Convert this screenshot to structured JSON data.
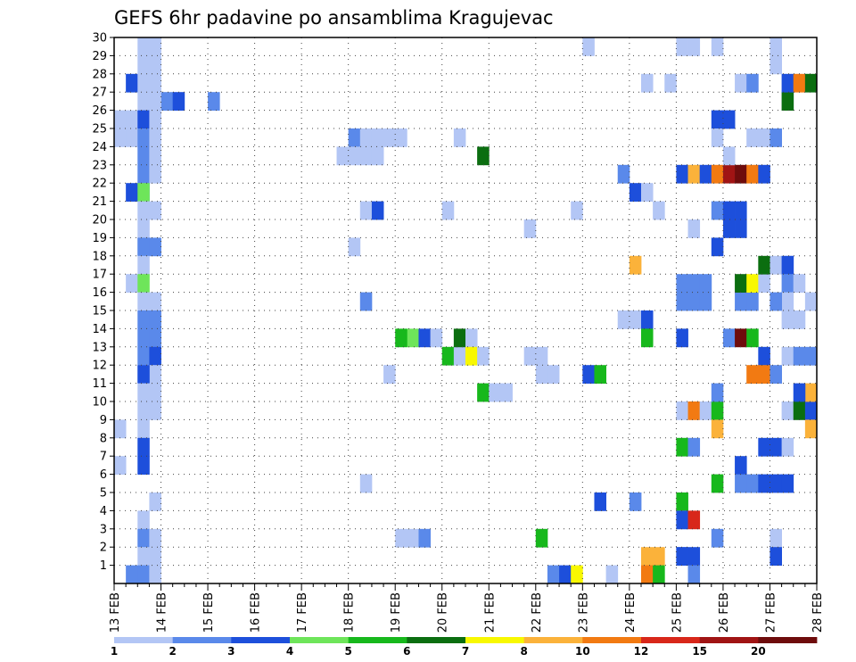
{
  "chart_data": {
    "type": "heatmap",
    "title": "GEFS 6hr padavine po ansamblima Kragujevac",
    "xlabel": "",
    "ylabel": "",
    "x_ticks": [
      "13 FEB",
      "14 FEB",
      "15 FEB",
      "16 FEB",
      "17 FEB",
      "18 FEB",
      "19 FEB",
      "20 FEB",
      "21 FEB",
      "22 FEB",
      "23 FEB",
      "24 FEB",
      "25 FEB",
      "26 FEB",
      "27 FEB",
      "28 FEB"
    ],
    "y_ticks": [
      "1",
      "2",
      "3",
      "4",
      "5",
      "6",
      "7",
      "8",
      "9",
      "10",
      "11",
      "12",
      "13",
      "14",
      "15",
      "16",
      "17",
      "18",
      "19",
      "20",
      "21",
      "22",
      "23",
      "24",
      "25",
      "26",
      "27",
      "28",
      "29",
      "30"
    ],
    "xlim": [
      "13 FEB 00Z",
      "28 FEB 00Z"
    ],
    "ylim": [
      0,
      30
    ],
    "x_step_hours": 6,
    "grid": true,
    "legend": {
      "position": "bottom",
      "thresholds": [
        "1",
        "2",
        "3",
        "4",
        "5",
        "6",
        "7",
        "8",
        "10",
        "12",
        "15",
        "20"
      ],
      "colors": [
        "#b3c6f5",
        "#5a89ea",
        "#1d4fdb",
        "#6ee55a",
        "#17b81c",
        "#0b6e10",
        "#f8f801",
        "#fbb23a",
        "#f27a12",
        "#d8271a",
        "#a01414",
        "#6e0c0c"
      ]
    },
    "cells": [
      [
        1,
        2,
        30
      ],
      [
        2,
        3,
        30
      ],
      [
        3,
        3,
        30
      ],
      [
        2,
        1,
        27
      ],
      [
        2,
        2,
        27
      ],
      [
        1,
        4,
        26
      ],
      [
        2,
        5,
        26
      ],
      [
        1,
        8,
        26
      ],
      [
        2,
        2,
        25
      ],
      [
        1,
        2,
        30
      ],
      [
        0,
        2,
        29
      ],
      [
        0,
        3,
        29
      ],
      [
        0,
        2,
        28
      ],
      [
        0,
        3,
        28
      ],
      [
        0,
        2,
        27
      ],
      [
        0,
        3,
        27
      ],
      [
        0,
        2,
        26
      ],
      [
        0,
        3,
        26
      ],
      [
        0,
        0,
        25
      ],
      [
        0,
        1,
        25
      ],
      [
        2,
        2,
        25
      ],
      [
        0,
        3,
        25
      ],
      [
        0,
        0,
        24
      ],
      [
        0,
        1,
        24
      ],
      [
        1,
        2,
        24
      ],
      [
        0,
        3,
        24
      ],
      [
        1,
        2,
        23
      ],
      [
        0,
        3,
        23
      ],
      [
        1,
        2,
        22
      ],
      [
        0,
        3,
        22
      ],
      [
        1,
        2,
        21
      ],
      [
        2,
        1,
        21
      ],
      [
        3,
        2,
        21
      ],
      [
        0,
        2,
        20
      ],
      [
        0,
        3,
        20
      ],
      [
        0,
        2,
        19
      ],
      [
        0,
        2,
        18
      ],
      [
        1,
        2,
        18
      ],
      [
        1,
        3,
        18
      ],
      [
        0,
        2,
        17
      ],
      [
        0,
        1,
        16
      ],
      [
        3,
        2,
        16
      ],
      [
        0,
        2,
        15
      ],
      [
        0,
        3,
        15
      ],
      [
        1,
        2,
        14
      ],
      [
        1,
        3,
        14
      ],
      [
        1,
        2,
        13
      ],
      [
        1,
        3,
        13
      ],
      [
        1,
        2,
        12
      ],
      [
        2,
        3,
        12
      ],
      [
        0,
        2,
        11
      ],
      [
        0,
        3,
        11
      ],
      [
        2,
        2,
        11
      ],
      [
        0,
        3,
        10
      ],
      [
        0,
        2,
        10
      ],
      [
        0,
        2,
        9
      ],
      [
        0,
        3,
        9
      ],
      [
        0,
        0,
        8
      ],
      [
        0,
        2,
        8
      ],
      [
        2,
        2,
        7
      ],
      [
        0,
        0,
        6
      ],
      [
        2,
        2,
        6
      ],
      [
        0,
        3,
        4
      ],
      [
        0,
        2,
        3
      ],
      [
        1,
        2,
        2
      ],
      [
        0,
        3,
        2
      ],
      [
        0,
        2,
        1
      ],
      [
        0,
        3,
        1
      ],
      [
        1,
        1,
        0
      ],
      [
        1,
        2,
        0
      ],
      [
        0,
        3,
        0
      ],
      [
        0,
        40,
        29
      ],
      [
        1,
        20,
        24
      ],
      [
        0,
        21,
        24
      ],
      [
        0,
        22,
        24
      ],
      [
        0,
        19,
        23
      ],
      [
        0,
        20,
        23
      ],
      [
        0,
        21,
        23
      ],
      [
        0,
        22,
        23
      ],
      [
        0,
        20,
        18
      ],
      [
        0,
        21,
        20
      ],
      [
        2,
        22,
        20
      ],
      [
        1,
        21,
        15
      ],
      [
        0,
        21,
        5
      ],
      [
        0,
        23,
        24
      ],
      [
        0,
        24,
        24
      ],
      [
        0,
        23,
        11
      ],
      [
        0,
        24,
        2
      ],
      [
        0,
        25,
        2
      ],
      [
        1,
        26,
        2
      ],
      [
        3,
        25,
        13
      ],
      [
        4,
        24,
        13
      ],
      [
        2,
        26,
        13
      ],
      [
        0,
        27,
        13
      ],
      [
        4,
        28,
        12
      ],
      [
        0,
        29,
        12
      ],
      [
        0,
        28,
        20
      ],
      [
        0,
        29,
        24
      ],
      [
        5,
        31,
        23
      ],
      [
        5,
        29,
        13
      ],
      [
        0,
        30,
        13
      ],
      [
        6,
        30,
        12
      ],
      [
        0,
        31,
        12
      ],
      [
        4,
        31,
        10
      ],
      [
        0,
        32,
        10
      ],
      [
        0,
        33,
        10
      ],
      [
        0,
        35,
        19
      ],
      [
        0,
        35,
        12
      ],
      [
        0,
        36,
        12
      ],
      [
        0,
        36,
        11
      ],
      [
        0,
        37,
        11
      ],
      [
        4,
        36,
        2
      ],
      [
        1,
        37,
        0
      ],
      [
        2,
        38,
        0
      ],
      [
        6,
        39,
        0
      ],
      [
        0,
        39,
        20
      ],
      [
        2,
        40,
        11
      ],
      [
        4,
        41,
        11
      ],
      [
        2,
        41,
        4
      ],
      [
        0,
        42,
        0
      ],
      [
        1,
        43,
        22
      ],
      [
        2,
        44,
        21
      ],
      [
        0,
        45,
        21
      ],
      [
        0,
        43,
        14
      ],
      [
        0,
        44,
        14
      ],
      [
        2,
        45,
        14
      ],
      [
        4,
        45,
        13
      ],
      [
        0,
        45,
        27
      ],
      [
        0,
        46,
        20
      ],
      [
        1,
        44,
        4
      ],
      [
        7,
        44,
        17
      ],
      [
        7,
        45,
        1
      ],
      [
        7,
        46,
        1
      ],
      [
        8,
        45,
        0
      ],
      [
        4,
        46,
        0
      ],
      [
        0,
        47,
        27
      ],
      [
        2,
        48,
        22
      ],
      [
        7,
        49,
        22
      ],
      [
        2,
        50,
        22
      ],
      [
        8,
        51,
        22
      ],
      [
        10,
        52,
        22
      ],
      [
        11,
        53,
        22
      ],
      [
        8,
        54,
        22
      ],
      [
        2,
        55,
        22
      ],
      [
        1,
        48,
        15
      ],
      [
        1,
        49,
        15
      ],
      [
        1,
        50,
        15
      ],
      [
        1,
        48,
        16
      ],
      [
        1,
        49,
        16
      ],
      [
        1,
        50,
        16
      ],
      [
        2,
        48,
        13
      ],
      [
        0,
        48,
        9
      ],
      [
        8,
        49,
        9
      ],
      [
        0,
        50,
        9
      ],
      [
        4,
        51,
        9
      ],
      [
        7,
        51,
        8
      ],
      [
        4,
        48,
        7
      ],
      [
        1,
        49,
        7
      ],
      [
        4,
        48,
        4
      ],
      [
        0,
        48,
        3
      ],
      [
        2,
        48,
        3
      ],
      [
        9,
        49,
        3
      ],
      [
        1,
        51,
        2
      ],
      [
        1,
        48,
        1
      ],
      [
        2,
        48,
        1
      ],
      [
        2,
        49,
        1
      ],
      [
        1,
        49,
        0
      ],
      [
        1,
        49,
        30
      ],
      [
        9,
        50,
        30
      ],
      [
        3,
        51,
        30
      ],
      [
        2,
        52,
        30
      ],
      [
        2,
        53,
        30
      ],
      [
        2,
        54,
        30
      ],
      [
        1,
        55,
        30
      ],
      [
        0,
        56,
        30
      ],
      [
        0,
        48,
        29
      ],
      [
        0,
        49,
        29
      ],
      [
        0,
        51,
        29
      ],
      [
        0,
        49,
        19
      ],
      [
        1,
        51,
        20
      ],
      [
        2,
        52,
        20
      ],
      [
        2,
        53,
        20
      ],
      [
        2,
        52,
        19
      ],
      [
        2,
        53,
        19
      ],
      [
        2,
        51,
        25
      ],
      [
        2,
        52,
        25
      ],
      [
        0,
        51,
        24
      ],
      [
        0,
        52,
        23
      ],
      [
        2,
        51,
        18
      ],
      [
        4,
        51,
        5
      ],
      [
        1,
        53,
        15
      ],
      [
        1,
        54,
        15
      ],
      [
        5,
        53,
        16
      ],
      [
        6,
        54,
        16
      ],
      [
        0,
        55,
        16
      ],
      [
        5,
        55,
        17
      ],
      [
        0,
        56,
        17
      ],
      [
        0,
        57,
        17
      ],
      [
        2,
        57,
        17
      ],
      [
        1,
        57,
        16
      ],
      [
        0,
        58,
        16
      ],
      [
        0,
        59,
        15
      ],
      [
        0,
        57,
        15
      ],
      [
        1,
        56,
        15
      ],
      [
        0,
        57,
        14
      ],
      [
        0,
        58,
        14
      ],
      [
        1,
        52,
        13
      ],
      [
        11,
        53,
        13
      ],
      [
        4,
        54,
        13
      ],
      [
        2,
        55,
        12
      ],
      [
        8,
        54,
        11
      ],
      [
        8,
        55,
        11
      ],
      [
        1,
        56,
        11
      ],
      [
        1,
        51,
        10
      ],
      [
        0,
        57,
        9
      ],
      [
        5,
        58,
        9
      ],
      [
        2,
        59,
        9
      ],
      [
        7,
        59,
        10
      ],
      [
        2,
        58,
        10
      ],
      [
        7,
        59,
        8
      ],
      [
        2,
        55,
        7
      ],
      [
        2,
        56,
        7
      ],
      [
        0,
        57,
        7
      ],
      [
        2,
        53,
        6
      ],
      [
        1,
        53,
        5
      ],
      [
        1,
        54,
        5
      ],
      [
        2,
        55,
        5
      ],
      [
        2,
        56,
        5
      ],
      [
        2,
        57,
        5
      ],
      [
        0,
        56,
        2
      ],
      [
        2,
        56,
        1
      ],
      [
        0,
        57,
        26
      ],
      [
        5,
        57,
        26
      ],
      [
        0,
        53,
        27
      ],
      [
        1,
        54,
        27
      ],
      [
        2,
        57,
        27
      ],
      [
        8,
        58,
        27
      ],
      [
        5,
        59,
        27
      ],
      [
        0,
        54,
        24
      ],
      [
        0,
        55,
        24
      ],
      [
        1,
        56,
        24
      ],
      [
        0,
        57,
        12
      ],
      [
        1,
        58,
        12
      ],
      [
        1,
        59,
        12
      ],
      [
        0,
        56,
        29
      ],
      [
        0,
        56,
        28
      ]
    ]
  }
}
